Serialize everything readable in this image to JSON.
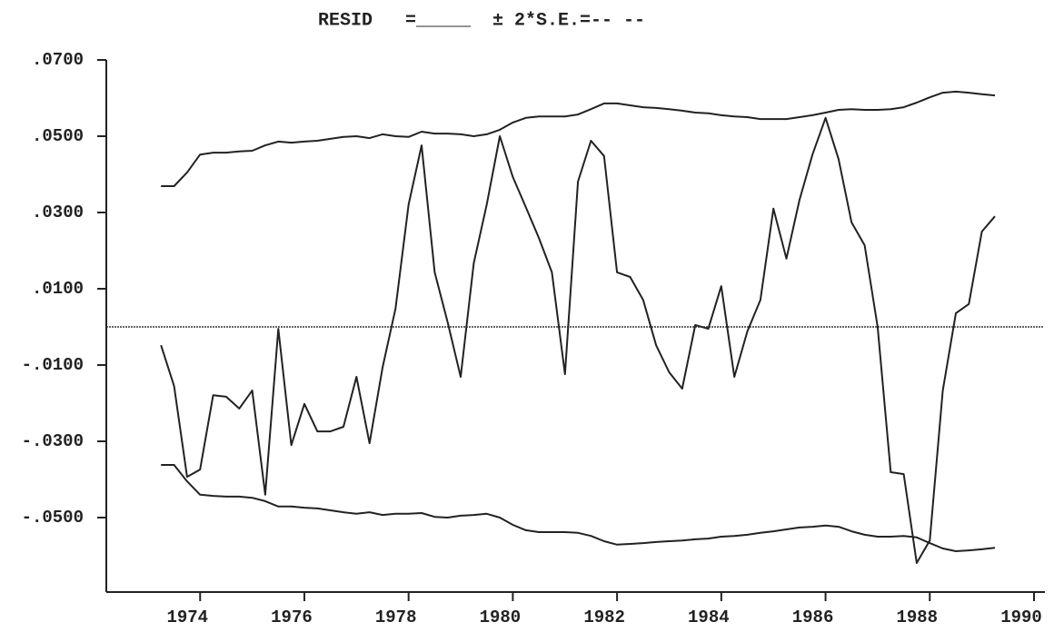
{
  "chart_data": {
    "type": "line",
    "title": "RESID   =_____  ± 2*S.E.=-- --",
    "x": [
      1973.25,
      1973.5,
      1973.75,
      1974,
      1974.25,
      1974.5,
      1974.75,
      1975,
      1975.25,
      1975.5,
      1975.75,
      1976,
      1976.25,
      1976.5,
      1976.75,
      1977,
      1977.25,
      1977.5,
      1977.75,
      1978,
      1978.25,
      1978.5,
      1978.75,
      1979,
      1979.25,
      1979.5,
      1979.75,
      1980,
      1980.25,
      1980.5,
      1980.75,
      1981,
      1981.25,
      1981.5,
      1981.75,
      1982,
      1982.25,
      1982.5,
      1982.75,
      1983,
      1983.25,
      1983.5,
      1983.75,
      1984,
      1984.25,
      1984.5,
      1984.75,
      1985,
      1985.25,
      1985.5,
      1985.75,
      1986,
      1986.25,
      1986.5,
      1986.75,
      1987,
      1987.25,
      1987.5,
      1987.75,
      1988,
      1988.25,
      1988.5,
      1988.75,
      1989,
      1989.25
    ],
    "series": [
      {
        "color": "#222222",
        "values": [
          -0.0048,
          -0.0155,
          -0.0393,
          -0.0374,
          -0.0179,
          -0.0183,
          -0.0214,
          -0.0167,
          -0.044,
          -0.0005,
          -0.031,
          -0.0202,
          -0.0274,
          -0.0274,
          -0.0262,
          -0.0131,
          -0.0305,
          -0.0107,
          0.0048,
          0.0321,
          0.0476,
          0.0143,
          0.0012,
          -0.0131,
          0.0167,
          0.0321,
          0.05,
          0.0393,
          0.0314,
          0.0233,
          0.0143,
          -0.0124,
          0.0381,
          0.0488,
          0.0448,
          0.0143,
          0.0131,
          0.0071,
          -0.0048,
          -0.0119,
          -0.0162,
          0.0005,
          -0.0005,
          0.0107,
          -0.0131,
          -0.0012,
          0.0071,
          0.031,
          0.0179,
          0.0333,
          0.0452,
          0.0548,
          0.044,
          0.0274,
          0.0214,
          0,
          -0.0381,
          -0.0386,
          -0.0619,
          -0.056,
          -0.0167,
          0.0036,
          0.006,
          0.025,
          0.029
        ]
      },
      {
        "color": "#222222",
        "values": [
          0.0369,
          0.0369,
          0.0405,
          0.0452,
          0.0457,
          0.0457,
          0.046,
          0.0462,
          0.0476,
          0.0486,
          0.0483,
          0.0486,
          0.0488,
          0.0493,
          0.0498,
          0.05,
          0.0495,
          0.0505,
          0.05,
          0.0498,
          0.0512,
          0.0507,
          0.0507,
          0.0505,
          0.05,
          0.0505,
          0.0517,
          0.0536,
          0.0548,
          0.0552,
          0.0552,
          0.0552,
          0.0557,
          0.0571,
          0.0586,
          0.0586,
          0.0581,
          0.0576,
          0.0574,
          0.0571,
          0.0567,
          0.0562,
          0.056,
          0.0555,
          0.0552,
          0.055,
          0.0545,
          0.0545,
          0.0545,
          0.055,
          0.0555,
          0.0562,
          0.0569,
          0.0571,
          0.0569,
          0.0569,
          0.0571,
          0.0576,
          0.0588,
          0.0602,
          0.0614,
          0.0617,
          0.0614,
          0.061,
          0.0607
        ]
      },
      {
        "color": "#222222",
        "values": [
          -0.0362,
          -0.0362,
          -0.0405,
          -0.044,
          -0.0443,
          -0.0445,
          -0.0445,
          -0.0448,
          -0.0457,
          -0.0471,
          -0.0471,
          -0.0474,
          -0.0476,
          -0.0481,
          -0.0486,
          -0.049,
          -0.0486,
          -0.0493,
          -0.049,
          -0.049,
          -0.0488,
          -0.0498,
          -0.05,
          -0.0495,
          -0.0493,
          -0.049,
          -0.05,
          -0.0519,
          -0.0533,
          -0.0538,
          -0.0538,
          -0.0538,
          -0.054,
          -0.0548,
          -0.0562,
          -0.0571,
          -0.0569,
          -0.0567,
          -0.0564,
          -0.0562,
          -0.056,
          -0.0557,
          -0.0555,
          -0.055,
          -0.0548,
          -0.0545,
          -0.054,
          -0.0536,
          -0.0531,
          -0.0526,
          -0.0524,
          -0.0521,
          -0.0524,
          -0.0536,
          -0.0545,
          -0.055,
          -0.055,
          -0.0548,
          -0.0552,
          -0.0567,
          -0.0581,
          -0.0588,
          -0.0586,
          -0.0583,
          -0.0579
        ]
      }
    ],
    "reference_line": 0,
    "xlim": [
      1972.2,
      1990
    ],
    "ylim": [
      -0.07,
      0.07
    ],
    "xticks": [
      1974,
      1976,
      1978,
      1980,
      1982,
      1984,
      1986,
      1988,
      1990
    ],
    "yticks": [
      {
        "value": 0.07,
        "label": ".0700"
      },
      {
        "value": 0.05,
        "label": ".0500"
      },
      {
        "value": 0.03,
        "label": ".0300"
      },
      {
        "value": 0.01,
        "label": ".0100"
      },
      {
        "value": -0.01,
        "label": "-.0100"
      },
      {
        "value": -0.03,
        "label": "-.0300"
      },
      {
        "value": -0.05,
        "label": "-.0500"
      }
    ],
    "grid": false
  }
}
